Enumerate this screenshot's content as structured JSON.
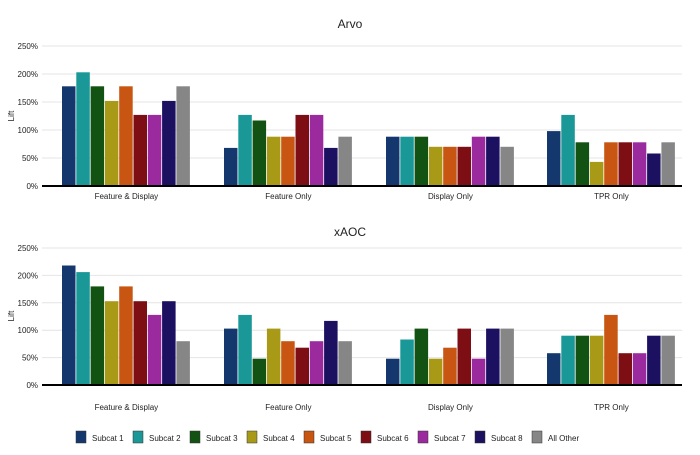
{
  "colors": [
    "#14386e",
    "#1a9898",
    "#125212",
    "#a89a16",
    "#c85512",
    "#7c0e14",
    "#9a2a9e",
    "#1c1060",
    "#868686"
  ],
  "legend": {
    "labels": [
      "Subcat 1",
      "Subcat 2",
      "Subcat 3",
      "Subcat 4",
      "Subcat 5",
      "Subcat 6",
      "Subcat 7",
      "Subcat 8",
      "All Other"
    ]
  },
  "chart_data": [
    {
      "type": "bar",
      "title": "Arvo",
      "ylabel": "Lift",
      "ylim": [
        0,
        250
      ],
      "yticks": [
        "0%",
        "50%",
        "100%",
        "150%",
        "200%",
        "250%"
      ],
      "grid": true,
      "categories": [
        "Feature & Display",
        "Feature Only",
        "Display Only",
        "TPR Only"
      ],
      "series": [
        {
          "name": "Subcat 1",
          "values": [
            178,
            68,
            88,
            98
          ]
        },
        {
          "name": "Subcat 2",
          "values": [
            203,
            127,
            88,
            127
          ]
        },
        {
          "name": "Subcat 3",
          "values": [
            178,
            117,
            88,
            78
          ]
        },
        {
          "name": "Subcat 4",
          "values": [
            152,
            88,
            70,
            43
          ]
        },
        {
          "name": "Subcat 5",
          "values": [
            178,
            88,
            70,
            78
          ]
        },
        {
          "name": "Subcat 6",
          "values": [
            127,
            127,
            70,
            78
          ]
        },
        {
          "name": "Subcat 7",
          "values": [
            127,
            127,
            88,
            78
          ]
        },
        {
          "name": "Subcat 8",
          "values": [
            152,
            68,
            88,
            58
          ]
        },
        {
          "name": "All Other",
          "values": [
            178,
            88,
            70,
            78
          ]
        }
      ]
    },
    {
      "type": "bar",
      "title": "xAOC",
      "ylabel": "Lift",
      "ylim": [
        0,
        250
      ],
      "yticks": [
        "0%",
        "50%",
        "100%",
        "150%",
        "200%",
        "250%"
      ],
      "grid": true,
      "categories": [
        "Feature & Display",
        "Feature Only",
        "Display Only",
        "TPR Only"
      ],
      "series": [
        {
          "name": "Subcat 1",
          "values": [
            218,
            103,
            48,
            58
          ]
        },
        {
          "name": "Subcat 2",
          "values": [
            206,
            128,
            83,
            90
          ]
        },
        {
          "name": "Subcat 3",
          "values": [
            180,
            48,
            103,
            90
          ]
        },
        {
          "name": "Subcat 4",
          "values": [
            153,
            103,
            48,
            90
          ]
        },
        {
          "name": "Subcat 5",
          "values": [
            180,
            80,
            68,
            128
          ]
        },
        {
          "name": "Subcat 6",
          "values": [
            153,
            68,
            103,
            58
          ]
        },
        {
          "name": "Subcat 7",
          "values": [
            128,
            80,
            48,
            58
          ]
        },
        {
          "name": "Subcat 8",
          "values": [
            153,
            117,
            103,
            90
          ]
        },
        {
          "name": "All Other",
          "values": [
            80,
            80,
            103,
            90
          ]
        }
      ]
    }
  ]
}
